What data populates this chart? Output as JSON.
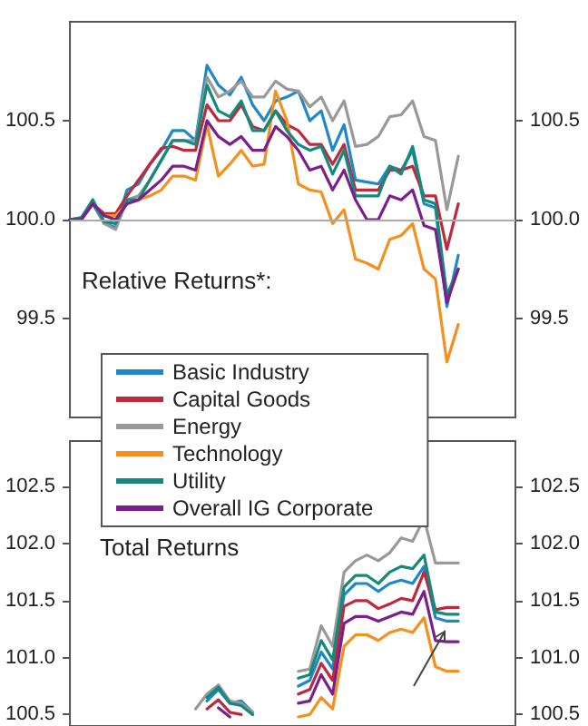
{
  "chart_data": [
    {
      "type": "line",
      "annotations": [
        "Relative Returns*:"
      ],
      "categories": [
        null,
        null,
        null,
        null,
        null,
        null,
        null,
        null,
        null,
        null,
        null,
        null,
        null,
        null,
        null,
        null,
        null,
        null,
        null,
        null,
        null,
        null,
        null,
        null,
        null,
        null,
        null,
        null,
        null,
        null,
        null,
        null,
        null,
        null,
        null,
        null,
        null,
        null,
        null,
        null
      ],
      "ylim": [
        99,
        101
      ],
      "yticks": [
        99.5,
        {
          "value": 100,
          "label": "100.0"
        },
        100.5
      ],
      "y2lim": [
        99,
        101
      ],
      "y2ticks": [
        99.5,
        {
          "value": 100,
          "label": "100.0"
        },
        100.5
      ],
      "ref_lines": [
        {
          "axis": "y",
          "value": 100,
          "color": "#aaaaaa"
        }
      ],
      "legend": "bottom left",
      "grid": false,
      "tick_labels": "y",
      "series": [
        {
          "name": "Basic Industry",
          "color": "#1f88c8",
          "values": [
            100.0,
            100.01,
            100.08,
            99.98,
            99.96,
            100.15,
            100.18,
            100.28,
            100.35,
            100.45,
            100.45,
            100.4,
            100.78,
            100.68,
            100.63,
            100.72,
            100.58,
            100.5,
            100.6,
            100.62,
            100.65,
            100.5,
            100.55,
            100.35,
            100.48,
            100.2,
            100.19,
            100.18,
            100.27,
            100.25,
            100.35,
            100.08,
            100.06,
            99.56,
            99.82,
            null,
            null,
            null,
            null,
            null
          ]
        },
        {
          "name": "Capital Goods",
          "color": "#c0283c",
          "values": [
            100.0,
            100.0,
            100.08,
            100.03,
            100.03,
            100.12,
            100.2,
            100.28,
            100.36,
            100.37,
            100.35,
            100.35,
            100.58,
            100.5,
            100.5,
            100.58,
            100.47,
            100.45,
            100.55,
            100.48,
            100.45,
            100.38,
            100.38,
            100.28,
            100.38,
            100.15,
            100.15,
            100.15,
            100.25,
            100.25,
            100.27,
            100.12,
            100.12,
            99.85,
            100.08,
            null,
            null,
            null,
            null,
            null
          ]
        },
        {
          "name": "Energy",
          "color": "#999999",
          "values": [
            100.0,
            100.0,
            100.1,
            99.98,
            99.95,
            100.1,
            100.12,
            100.2,
            100.3,
            100.4,
            100.4,
            100.4,
            100.72,
            100.62,
            100.65,
            100.7,
            100.62,
            100.62,
            100.7,
            100.66,
            100.65,
            100.57,
            100.62,
            100.5,
            100.6,
            100.37,
            100.38,
            100.42,
            100.52,
            100.53,
            100.6,
            100.42,
            100.4,
            100.05,
            100.32,
            null,
            null,
            null,
            null,
            null
          ]
        },
        {
          "name": "Technology",
          "color": "#f5901e",
          "values": [
            null,
            null,
            100.08,
            100.02,
            100.02,
            100.08,
            100.1,
            100.12,
            100.15,
            100.22,
            100.22,
            100.2,
            100.48,
            100.22,
            100.28,
            100.35,
            100.27,
            100.28,
            100.65,
            100.5,
            100.18,
            100.15,
            100.14,
            99.98,
            100.05,
            99.8,
            99.78,
            99.75,
            99.9,
            99.92,
            99.98,
            99.75,
            99.7,
            99.28,
            99.47,
            null,
            null,
            null,
            null,
            null
          ]
        },
        {
          "name": "Utility",
          "color": "#138a7a",
          "values": [
            100.0,
            100.01,
            100.1,
            99.99,
            99.98,
            100.1,
            100.1,
            100.2,
            100.3,
            100.4,
            100.4,
            100.38,
            100.68,
            100.55,
            100.52,
            100.6,
            100.45,
            100.45,
            100.55,
            100.45,
            100.38,
            100.35,
            100.37,
            100.23,
            100.35,
            100.12,
            100.12,
            100.12,
            100.27,
            100.23,
            100.37,
            100.1,
            100.08,
            99.62,
            99.75,
            null,
            null,
            null,
            null,
            null
          ]
        },
        {
          "name": "Overall IG Corporate",
          "color": "#7b1f8c",
          "values": [
            100.0,
            100.0,
            100.08,
            100.02,
            100.0,
            100.08,
            100.1,
            100.15,
            100.2,
            100.27,
            100.27,
            100.25,
            100.5,
            100.42,
            100.38,
            100.42,
            100.35,
            100.35,
            100.47,
            100.42,
            100.35,
            100.25,
            100.27,
            100.15,
            100.25,
            100.1,
            100.0,
            100.0,
            100.12,
            100.1,
            100.15,
            99.97,
            99.95,
            99.58,
            99.75,
            null,
            null,
            null,
            null,
            null
          ]
        }
      ]
    },
    {
      "type": "line",
      "annotations": [
        "Total Returns"
      ],
      "categories": [
        null,
        null,
        null,
        null,
        null,
        null,
        null,
        null,
        null,
        null,
        null,
        null,
        null,
        null,
        null,
        null,
        null,
        null,
        null,
        null,
        null,
        null,
        null,
        null,
        null,
        null,
        null,
        null,
        null,
        null,
        null,
        null,
        null,
        null,
        null,
        null,
        null,
        null,
        null,
        null
      ],
      "ylim": [
        100.4,
        102.9
      ],
      "yticks": [
        100.5,
        {
          "value": 101,
          "label": "101.0"
        },
        101.5,
        {
          "value": 102,
          "label": "102.0"
        },
        102.5
      ],
      "y2lim": [
        100.4,
        102.9
      ],
      "y2ticks": [
        100.5,
        {
          "value": 101,
          "label": "101.0"
        },
        101.5,
        {
          "value": 102,
          "label": "102.0"
        },
        102.5
      ],
      "grid": false,
      "tick_labels": "y",
      "series": [
        {
          "color": "#1f88c8",
          "values": [
            null,
            null,
            null,
            null,
            null,
            null,
            null,
            null,
            null,
            null,
            null,
            null,
            100.62,
            100.72,
            100.6,
            100.62,
            100.52,
            null,
            null,
            null,
            100.75,
            100.8,
            101.05,
            100.9,
            101.55,
            101.65,
            101.65,
            101.58,
            101.65,
            101.68,
            101.65,
            101.8,
            101.35,
            101.32,
            101.32,
            null,
            null,
            null,
            null,
            null
          ]
        },
        {
          "color": "#c0283c",
          "values": [
            null,
            null,
            null,
            null,
            null,
            null,
            null,
            null,
            null,
            null,
            null,
            null,
            100.55,
            100.63,
            100.52,
            100.5,
            null,
            null,
            null,
            null,
            100.68,
            100.72,
            100.95,
            100.8,
            101.45,
            101.5,
            101.5,
            101.43,
            101.47,
            101.52,
            101.5,
            101.75,
            101.42,
            101.44,
            101.44,
            null,
            null,
            null,
            null,
            null
          ]
        },
        {
          "color": "#999999",
          "values": [
            null,
            null,
            null,
            null,
            null,
            null,
            null,
            null,
            null,
            null,
            null,
            100.55,
            100.68,
            100.76,
            100.62,
            100.6,
            100.52,
            null,
            null,
            null,
            100.88,
            100.9,
            101.28,
            101.1,
            101.75,
            101.85,
            101.9,
            101.85,
            101.92,
            102.05,
            102.02,
            102.22,
            101.83,
            101.83,
            101.83,
            null,
            null,
            null,
            null,
            null
          ]
        },
        {
          "color": "#f5901e",
          "values": [
            null,
            null,
            null,
            null,
            null,
            null,
            null,
            null,
            null,
            null,
            null,
            null,
            null,
            null,
            null,
            null,
            null,
            null,
            null,
            null,
            100.48,
            100.5,
            100.65,
            100.55,
            101.1,
            101.2,
            101.2,
            101.15,
            101.22,
            101.25,
            101.22,
            101.35,
            100.92,
            100.88,
            100.88,
            null,
            null,
            null,
            null,
            null
          ]
        },
        {
          "color": "#138a7a",
          "values": [
            null,
            null,
            null,
            null,
            null,
            null,
            null,
            null,
            null,
            null,
            null,
            null,
            100.65,
            100.74,
            100.6,
            100.58,
            100.5,
            null,
            null,
            null,
            100.82,
            100.85,
            101.15,
            100.98,
            101.62,
            101.72,
            101.72,
            101.65,
            101.75,
            101.8,
            101.78,
            101.9,
            101.4,
            101.38,
            101.38,
            null,
            null,
            null,
            null,
            null
          ]
        },
        {
          "color": "#7b1f8c",
          "values": [
            null,
            null,
            null,
            null,
            null,
            null,
            null,
            null,
            null,
            null,
            null,
            null,
            null,
            100.56,
            100.48,
            null,
            null,
            null,
            null,
            null,
            100.6,
            100.62,
            100.85,
            100.68,
            101.3,
            101.36,
            101.36,
            101.32,
            101.36,
            101.4,
            101.38,
            101.58,
            101.15,
            101.14,
            101.14,
            null,
            null,
            null,
            null,
            null
          ]
        }
      ]
    }
  ]
}
